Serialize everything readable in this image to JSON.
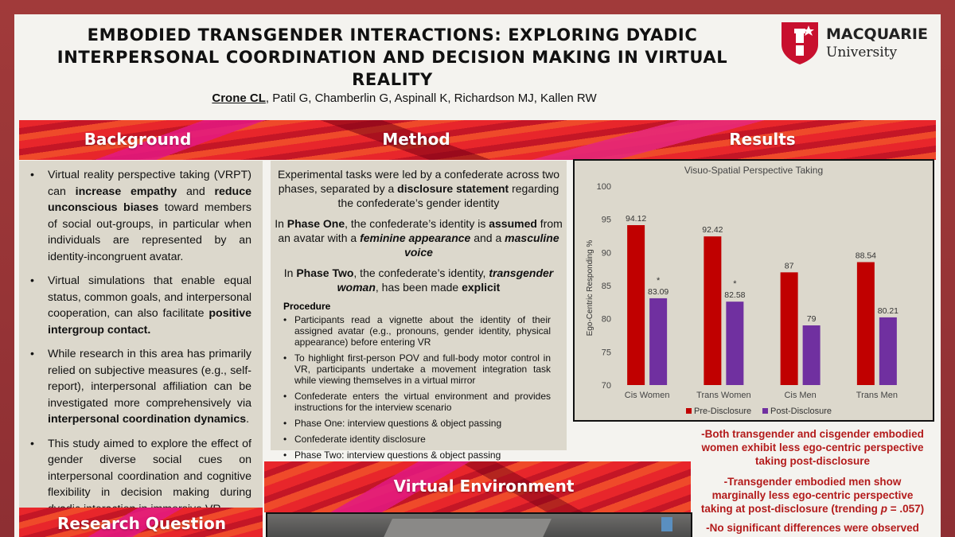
{
  "header": {
    "title_line1": "EMBODIED TRANSGENDER INTERACTIONS: EXPLORING DYADIC",
    "title_line2": "INTERPERSONAL COORDINATION AND DECISION MAKING IN VIRTUAL REALITY",
    "lead_author": "Crone CL",
    "other_authors": ", Patil G, Chamberlin G, Aspinall K, Richardson MJ, Kallen RW",
    "logo_line1": "MACQUARIE",
    "logo_line2": "University"
  },
  "sections": {
    "background": "Background",
    "method": "Method",
    "results": "Results",
    "virtual_environment": "Virtual Environment",
    "research_question": "Research Question"
  },
  "background": {
    "b1_a": "Virtual reality perspective taking (VRPT) can ",
    "b1_b": "increase empathy",
    "b1_c": " and ",
    "b1_d": "reduce unconscious biases",
    "b1_e": " toward members of social out-groups, in particular when individuals are represented by an identity-incongruent avatar.",
    "b2_a": "Virtual simulations that enable equal status, common goals, and interpersonal cooperation, can also facilitate ",
    "b2_b": "positive intergroup contact.",
    "b3_a": "While research in this area has primarily relied on subjective measures (e.g., self-report), interpersonal affiliation can be investigated more comprehensively via ",
    "b3_b": "interpersonal coordination dynamics",
    "b3_c": ".",
    "b4": "This study aimed to explore the effect of gender diverse social cues on interpersonal coordination and cognitive flexibility in decision making during dyadic interaction in immersive VR."
  },
  "method": {
    "p1_a": "Experimental tasks were led by a confederate across two phases, separated by a ",
    "p1_b": "disclosure statement",
    "p1_c": " regarding the confederate’s gender identity",
    "p2_a": "In ",
    "p2_b": "Phase One",
    "p2_c": ", the confederate’s identity is ",
    "p2_d": "assumed",
    "p2_e": " from an avatar with a ",
    "p2_f": "feminine appearance",
    "p2_g": " and a ",
    "p2_h": "masculine voice",
    "p3_a": "In ",
    "p3_b": "Phase Two",
    "p3_c": ", the confederate’s identity, ",
    "p3_d": "transgender woman",
    "p3_e": ", has been made ",
    "p3_f": "explicit",
    "procedure_heading": "Procedure",
    "procedure": [
      "Participants read a vignette about the identity of their assigned avatar (e.g., pronouns, gender identity, physical appearance) before entering VR",
      "To highlight first-person POV and full-body motor control in VR, participants undertake a movement integration task while viewing themselves in a virtual mirror",
      "Confederate enters the virtual environment and provides instructions for the interview scenario",
      "Phase One: interview questions & object passing",
      "Confederate identity disclosure",
      "Phase Two: interview questions & object passing"
    ]
  },
  "results": {
    "r1": "-Both transgender and cisgender embodied women exhibit less ego-centric perspective taking post-disclosure",
    "r2_a": "-Transgender embodied men show marginally less ego-centric perspective taking at post-disclosure (trending ",
    "r2_b": "p",
    "r2_c": " = .057)",
    "r3": "-No significant differences were observed"
  },
  "chart_data": {
    "type": "bar",
    "title": "Visuo-Spatial Perspective Taking",
    "ylabel": "Ego-Centric Responding %",
    "xlabel": "",
    "ylim": [
      70,
      100
    ],
    "yticks": [
      70,
      75,
      80,
      85,
      90,
      95,
      100
    ],
    "categories": [
      "Cis Women",
      "Trans Women",
      "Cis Men",
      "Trans Men"
    ],
    "series": [
      {
        "name": "Pre-Disclosure",
        "color": "#c00000",
        "values": [
          94.12,
          92.42,
          87,
          88.54
        ]
      },
      {
        "name": "Post-Disclosure",
        "color": "#7030a0",
        "values": [
          83.09,
          82.58,
          79,
          80.21
        ]
      }
    ],
    "significance": [
      "*",
      "*",
      "",
      ""
    ],
    "legend": "bottom",
    "grid": false
  }
}
